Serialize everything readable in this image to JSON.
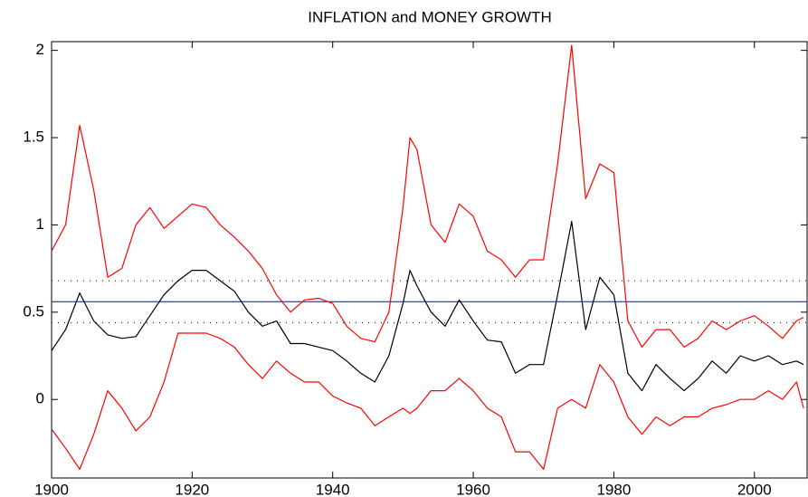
{
  "chart_data": {
    "type": "line",
    "title": "INFLATION and MONEY GROWTH",
    "x": [
      1900,
      1902,
      1904,
      1906,
      1908,
      1910,
      1912,
      1914,
      1916,
      1918,
      1920,
      1922,
      1924,
      1926,
      1928,
      1930,
      1932,
      1934,
      1936,
      1938,
      1940,
      1942,
      1944,
      1946,
      1948,
      1950,
      1951,
      1952,
      1954,
      1956,
      1958,
      1960,
      1962,
      1964,
      1966,
      1968,
      1970,
      1972,
      1974,
      1976,
      1978,
      1980,
      1982,
      1984,
      1986,
      1988,
      1990,
      1992,
      1994,
      1996,
      1998,
      2000,
      2002,
      2004,
      2006,
      2007
    ],
    "series": [
      {
        "color": "#ff0000",
        "values": [
          0.85,
          1.0,
          1.57,
          1.2,
          0.7,
          0.75,
          1.0,
          1.1,
          0.98,
          1.05,
          1.12,
          1.1,
          1.0,
          0.93,
          0.85,
          0.75,
          0.6,
          0.5,
          0.57,
          0.58,
          0.55,
          0.42,
          0.35,
          0.33,
          0.5,
          1.1,
          1.5,
          1.43,
          1.0,
          0.9,
          1.12,
          1.05,
          0.85,
          0.8,
          0.7,
          0.8,
          0.8,
          1.35,
          2.03,
          1.15,
          1.35,
          1.3,
          0.45,
          0.3,
          0.4,
          0.4,
          0.3,
          0.35,
          0.45,
          0.4,
          0.45,
          0.48,
          0.42,
          0.35,
          0.45,
          0.47
        ]
      },
      {
        "color": "#000000",
        "values": [
          0.28,
          0.4,
          0.61,
          0.45,
          0.37,
          0.35,
          0.36,
          0.48,
          0.6,
          0.68,
          0.74,
          0.74,
          0.68,
          0.62,
          0.5,
          0.42,
          0.45,
          0.32,
          0.32,
          0.3,
          0.28,
          0.22,
          0.15,
          0.1,
          0.25,
          0.55,
          0.74,
          0.65,
          0.5,
          0.42,
          0.57,
          0.45,
          0.34,
          0.33,
          0.15,
          0.2,
          0.2,
          0.6,
          1.02,
          0.4,
          0.7,
          0.6,
          0.15,
          0.05,
          0.2,
          0.12,
          0.05,
          0.12,
          0.22,
          0.15,
          0.25,
          0.22,
          0.25,
          0.2,
          0.22,
          0.2
        ]
      },
      {
        "color": "#ff0000",
        "values": [
          -0.17,
          -0.28,
          -0.4,
          -0.2,
          0.05,
          -0.05,
          -0.18,
          -0.1,
          0.1,
          0.38,
          0.38,
          0.38,
          0.35,
          0.3,
          0.2,
          0.12,
          0.22,
          0.15,
          0.1,
          0.1,
          0.02,
          -0.02,
          -0.05,
          -0.15,
          -0.1,
          -0.05,
          -0.08,
          -0.05,
          0.05,
          0.05,
          0.12,
          0.05,
          -0.05,
          -0.1,
          -0.3,
          -0.3,
          -0.4,
          -0.05,
          0.0,
          -0.05,
          0.2,
          0.1,
          -0.1,
          -0.2,
          -0.1,
          -0.15,
          -0.1,
          -0.1,
          -0.05,
          -0.03,
          0.0,
          0.0,
          0.05,
          0.0,
          0.1,
          -0.05
        ]
      }
    ],
    "reference_lines": [
      {
        "value": 0.56,
        "color": "#0000ff",
        "dashed": false
      },
      {
        "value": 0.68,
        "color": "#000000",
        "dashed": true
      },
      {
        "value": 0.44,
        "color": "#000000",
        "dashed": true
      }
    ],
    "xlim": [
      1900,
      2007.5
    ],
    "xticks": [
      1900,
      1920,
      1940,
      1960,
      1980,
      2000
    ],
    "ylim": [
      -0.45,
      2.05
    ],
    "yticks": [
      0,
      0.5,
      1,
      1.5,
      2
    ]
  }
}
